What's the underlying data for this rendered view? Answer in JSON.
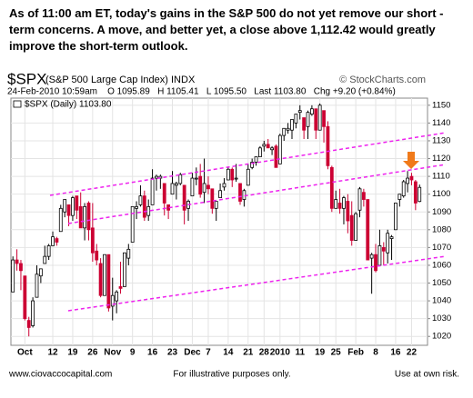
{
  "header": {
    "note": "As of 11:00 am ET, today's gains in the S&P 500 do not yet remove our short -term concerns.  A move, and better yet, a close above 1,112.42 would greatly improve the short-term outlook."
  },
  "chart_data": {
    "type": "candlestick",
    "symbol": "$SPX",
    "name": "(S&P 500 Large Cap Index) INDX",
    "source": "© StockCharts.com",
    "quote_line": "24-Feb-2010 10:59am    O 1095.89   H 1105.41   L 1095.50   Last 1103.80   Chg +9.20 (+0.84%)",
    "legend": "$SPX (Daily) 1103.80",
    "up_color": "#000000",
    "down_color": "#cc0033",
    "grid": true,
    "ylim": [
      1015,
      1154
    ],
    "yticks": [
      1020,
      1030,
      1040,
      1050,
      1060,
      1070,
      1080,
      1090,
      1100,
      1110,
      1120,
      1130,
      1140,
      1150
    ],
    "xlim": [
      -0.5,
      104
    ],
    "xticks": [
      {
        "value": 3,
        "label": "Oct"
      },
      {
        "value": 10,
        "label": "12"
      },
      {
        "value": 15,
        "label": "19"
      },
      {
        "value": 20,
        "label": "26"
      },
      {
        "value": 25,
        "label": "Nov"
      },
      {
        "value": 30,
        "label": "9"
      },
      {
        "value": 35,
        "label": "16"
      },
      {
        "value": 40,
        "label": "23"
      },
      {
        "value": 45,
        "label": "Dec"
      },
      {
        "value": 49,
        "label": "7"
      },
      {
        "value": 54,
        "label": "14"
      },
      {
        "value": 59,
        "label": "21"
      },
      {
        "value": 63,
        "label": "28"
      },
      {
        "value": 67,
        "label": "2010"
      },
      {
        "value": 72,
        "label": "11"
      },
      {
        "value": 77,
        "label": "19"
      },
      {
        "value": 81,
        "label": "25"
      },
      {
        "value": 86,
        "label": "Feb"
      },
      {
        "value": 91,
        "label": "8"
      },
      {
        "value": 96,
        "label": "16"
      },
      {
        "value": 100,
        "label": "22"
      }
    ],
    "open": [
      1045,
      1063,
      1061,
      1054,
      1029,
      1026,
      1042,
      1054,
      1061,
      1065,
      1071,
      1075,
      1079,
      1090,
      1094,
      1088,
      1099,
      1093,
      1081,
      1095,
      1081,
      1068,
      1061,
      1043,
      1066,
      1037,
      1040,
      1048,
      1048,
      1064,
      1073,
      1092,
      1094,
      1099,
      1088,
      1094,
      1109,
      1109,
      1106,
      1094,
      1100,
      1105,
      1106,
      1105,
      1092,
      1099,
      1109,
      1110,
      1101,
      1105,
      1103,
      1092,
      1098,
      1104,
      1108,
      1114,
      1109,
      1106,
      1097,
      1105,
      1115,
      1118,
      1121,
      1127,
      1128,
      1125,
      1127,
      1117,
      1133,
      1136,
      1136,
      1140,
      1146,
      1143,
      1138,
      1145,
      1148,
      1136,
      1147,
      1138,
      1115,
      1092,
      1095,
      1092,
      1096,
      1088,
      1074,
      1091,
      1101,
      1097,
      1064,
      1066,
      1060,
      1070,
      1067,
      1075,
      1080,
      1097,
      1099,
      1106,
      1110,
      1107,
      1095.89
    ],
    "high": [
      1065,
      1069,
      1063,
      1054,
      1031,
      1042,
      1060,
      1058,
      1071,
      1072,
      1079,
      1076,
      1094,
      1097,
      1094,
      1099,
      1099,
      1101,
      1095,
      1096,
      1095,
      1072,
      1064,
      1066,
      1066,
      1053,
      1046,
      1062,
      1067,
      1072,
      1093,
      1096,
      1105,
      1102,
      1097,
      1114,
      1111,
      1111,
      1106,
      1094,
      1113,
      1107,
      1112,
      1105,
      1097,
      1112,
      1115,
      1117,
      1120,
      1110,
      1103,
      1096,
      1106,
      1109,
      1115,
      1115,
      1117,
      1106,
      1103,
      1117,
      1120,
      1121,
      1127,
      1130,
      1131,
      1127,
      1128,
      1134,
      1137,
      1140,
      1142,
      1145,
      1150,
      1143,
      1147,
      1150,
      1148,
      1151,
      1147,
      1141,
      1116,
      1102,
      1103,
      1099,
      1100,
      1096,
      1090,
      1104,
      1103,
      1097,
      1067,
      1072,
      1080,
      1073,
      1080,
      1077,
      1095,
      1100,
      1108,
      1113,
      1112,
      1108,
      1105.41
    ],
    "low": [
      1045,
      1057,
      1046,
      1029,
      1020,
      1025,
      1042,
      1050,
      1061,
      1063,
      1071,
      1071,
      1079,
      1087,
      1082,
      1085,
      1086,
      1081,
      1074,
      1074,
      1062,
      1060,
      1042,
      1043,
      1034,
      1029,
      1033,
      1044,
      1048,
      1060,
      1073,
      1086,
      1093,
      1085,
      1085,
      1094,
      1102,
      1103,
      1088,
      1086,
      1100,
      1097,
      1105,
      1083,
      1085,
      1099,
      1105,
      1098,
      1095,
      1100,
      1089,
      1085,
      1098,
      1102,
      1108,
      1104,
      1107,
      1094,
      1093,
      1105,
      1114,
      1116,
      1121,
      1124,
      1126,
      1122,
      1115,
      1117,
      1130,
      1134,
      1131,
      1137,
      1142,
      1131,
      1131,
      1144,
      1131,
      1136,
      1129,
      1114,
      1090,
      1092,
      1089,
      1083,
      1078,
      1071,
      1074,
      1087,
      1093,
      1063,
      1044,
      1056,
      1060,
      1060,
      1061,
      1063,
      1080,
      1093,
      1098,
      1101,
      1105,
      1091,
      1095.5
    ],
    "close": [
      1063,
      1061,
      1057,
      1030,
      1025,
      1040,
      1055,
      1058,
      1065,
      1071,
      1076,
      1073,
      1092,
      1097,
      1088,
      1098,
      1091,
      1081,
      1093,
      1080,
      1067,
      1063,
      1043,
      1066,
      1036,
      1043,
      1045,
      1047,
      1067,
      1069,
      1093,
      1093,
      1099,
      1087,
      1093,
      1109,
      1110,
      1110,
      1095,
      1091,
      1106,
      1106,
      1111,
      1091,
      1096,
      1109,
      1109,
      1100,
      1106,
      1103,
      1092,
      1096,
      1102,
      1106,
      1114,
      1108,
      1109,
      1096,
      1102,
      1114,
      1118,
      1121,
      1126,
      1128,
      1126,
      1126,
      1115,
      1133,
      1137,
      1137,
      1142,
      1145,
      1147,
      1136,
      1146,
      1148,
      1136,
      1150,
      1138,
      1116,
      1092,
      1097,
      1092,
      1098,
      1085,
      1074,
      1089,
      1103,
      1097,
      1063,
      1066,
      1057,
      1071,
      1068,
      1078,
      1076,
      1095,
      1100,
      1107,
      1109,
      1108,
      1095,
      1103.8
    ]
  },
  "footer": {
    "left": "www.ciovaccocapital.com",
    "center": "For illustrative purposes only.",
    "right": "Use at own risk."
  }
}
